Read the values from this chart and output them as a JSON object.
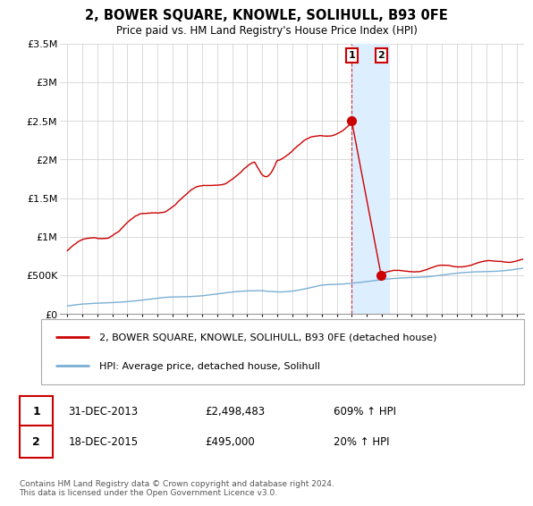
{
  "title": "2, BOWER SQUARE, KNOWLE, SOLIHULL, B93 0FE",
  "subtitle": "Price paid vs. HM Land Registry's House Price Index (HPI)",
  "transaction1": {
    "date": "31-DEC-2013",
    "price": 2498483,
    "label": "609% ↑ HPI",
    "year": 2013.99
  },
  "transaction2": {
    "date": "18-DEC-2015",
    "price": 495000,
    "label": "20% ↑ HPI",
    "year": 2015.96
  },
  "legend_line1": "2, BOWER SQUARE, KNOWLE, SOLIHULL, B93 0FE (detached house)",
  "legend_line2": "HPI: Average price, detached house, Solihull",
  "footer": "Contains HM Land Registry data © Crown copyright and database right 2024.\nThis data is licensed under the Open Government Licence v3.0.",
  "ylim": [
    0,
    3500000
  ],
  "yticks": [
    0,
    500000,
    1000000,
    1500000,
    2000000,
    2500000,
    3000000,
    3500000
  ],
  "xlim_start": 1994.5,
  "xlim_end": 2025.5,
  "red_color": "#cc0000",
  "blue_color": "#7aafd4",
  "highlight_color": "#ddeeff",
  "background_color": "#ffffff",
  "grid_color": "#cccccc"
}
